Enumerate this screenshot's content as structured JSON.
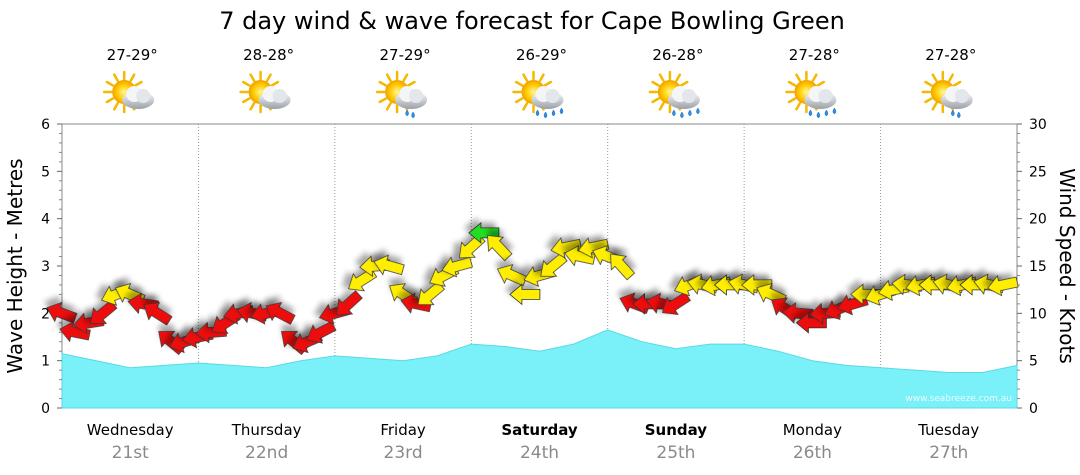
{
  "chart_data": {
    "type": "area",
    "title": "7 day wind & wave forecast for Cape Bowling Green",
    "ylabel_left": "Wave Height - Metres",
    "ylabel_right": "Wind Speed - Knots",
    "ylim_left": [
      0,
      6
    ],
    "ylim_right": [
      0,
      30
    ],
    "yticks_left": [
      "0",
      "1",
      "2",
      "3",
      "4",
      "5",
      "6"
    ],
    "yticks_right": [
      "0",
      "5",
      "10",
      "15",
      "20",
      "25",
      "30"
    ],
    "watermark": "www.seabreeze.com.au",
    "days": [
      {
        "name": "Wednesday",
        "date": "21st",
        "temp": "27-29°",
        "weather": "partly-cloudy",
        "bold": false
      },
      {
        "name": "Thursday",
        "date": "22nd",
        "temp": "28-28°",
        "weather": "partly-cloudy",
        "bold": false
      },
      {
        "name": "Friday",
        "date": "23rd",
        "temp": "27-29°",
        "weather": "showers",
        "bold": false
      },
      {
        "name": "Saturday",
        "date": "24th",
        "temp": "26-29°",
        "weather": "rain",
        "bold": true
      },
      {
        "name": "Sunday",
        "date": "25th",
        "temp": "26-28°",
        "weather": "rain",
        "bold": true
      },
      {
        "name": "Monday",
        "date": "26th",
        "temp": "27-28°",
        "weather": "rain",
        "bold": false
      },
      {
        "name": "Tuesday",
        "date": "27th",
        "temp": "27-28°",
        "weather": "showers",
        "bold": false
      }
    ],
    "wave_series": {
      "name": "Wave Height",
      "x_day": [
        0,
        0.25,
        0.5,
        0.75,
        1.0,
        1.25,
        1.5,
        1.75,
        2.0,
        2.25,
        2.5,
        2.75,
        3.0,
        3.25,
        3.5,
        3.75,
        4.0,
        4.25,
        4.5,
        4.75,
        5.0,
        5.25,
        5.5,
        5.75,
        6.0,
        6.25,
        6.5,
        6.75,
        7.0
      ],
      "y_m": [
        1.15,
        1.0,
        0.85,
        0.9,
        0.95,
        0.9,
        0.85,
        1.0,
        1.1,
        1.05,
        1.0,
        1.1,
        1.35,
        1.3,
        1.2,
        1.35,
        1.65,
        1.4,
        1.25,
        1.35,
        1.35,
        1.2,
        1.0,
        0.9,
        0.85,
        0.8,
        0.75,
        0.75,
        0.9
      ]
    },
    "wind_series": {
      "name": "Wind Speed (knots)",
      "x_day": [
        0.0,
        0.1,
        0.2,
        0.3,
        0.4,
        0.5,
        0.6,
        0.7,
        0.8,
        0.9,
        1.0,
        1.1,
        1.2,
        1.3,
        1.4,
        1.5,
        1.6,
        1.7,
        1.8,
        1.9,
        2.0,
        2.1,
        2.2,
        2.3,
        2.4,
        2.5,
        2.6,
        2.7,
        2.8,
        2.9,
        3.0,
        3.1,
        3.2,
        3.3,
        3.4,
        3.5,
        3.6,
        3.7,
        3.8,
        3.9,
        4.0,
        4.1,
        4.2,
        4.3,
        4.4,
        4.5,
        4.6,
        4.7,
        4.8,
        4.9,
        5.0,
        5.1,
        5.2,
        5.3,
        5.4,
        5.5,
        5.6,
        5.7,
        5.8,
        5.9,
        6.0,
        6.1,
        6.2,
        6.3,
        6.4,
        6.5,
        6.6,
        6.7,
        6.8,
        6.9
      ],
      "knots": [
        10,
        8,
        9,
        10,
        12,
        12,
        11,
        10,
        7,
        7,
        7.5,
        8,
        9,
        10,
        10,
        10,
        10,
        7,
        7,
        8,
        10,
        11,
        13.5,
        15,
        15,
        12,
        11,
        12,
        14,
        15,
        17,
        18.5,
        17,
        14,
        12,
        14,
        15,
        17,
        16,
        17,
        16,
        15,
        11,
        11,
        11,
        11,
        13,
        13,
        13,
        13,
        13,
        13,
        12,
        10.5,
        10,
        9,
        10,
        10.5,
        11,
        12,
        12,
        12.5,
        13,
        13,
        13,
        13,
        13,
        13,
        13,
        13
      ],
      "color_scale": {
        "red": "< 12",
        "yellow": "12-17",
        "green": "> 17"
      }
    }
  }
}
